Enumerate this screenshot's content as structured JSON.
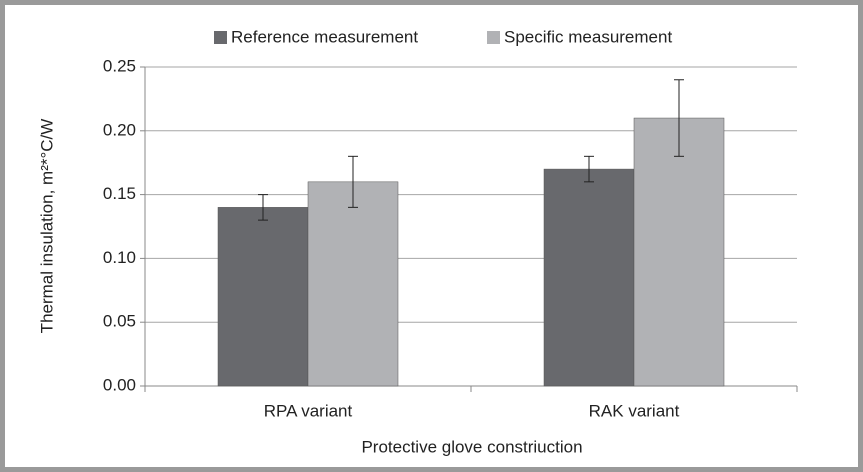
{
  "chart_data": {
    "type": "bar",
    "xlabel": "Protective glove constriuction",
    "ylabel": "Thermal insulation, m²*°C/W",
    "categories": [
      "RPA variant",
      "RAK variant"
    ],
    "series": [
      {
        "name": "Reference measurement",
        "color": "#68696d",
        "values": [
          0.14,
          0.17
        ],
        "errors": [
          0.01,
          0.01
        ]
      },
      {
        "name": "Specific measurement",
        "color": "#b1b2b5",
        "values": [
          0.16,
          0.21
        ],
        "errors": [
          0.02,
          0.03
        ]
      }
    ],
    "ylim": [
      0,
      0.25
    ],
    "yticks": [
      {
        "value": 0,
        "label": "0.00"
      },
      0.05,
      {
        "value": 0.1,
        "label": "0.10"
      },
      0.15,
      {
        "value": 0.2,
        "label": "0.20"
      },
      0.25
    ],
    "grid": true,
    "legend": "top"
  }
}
